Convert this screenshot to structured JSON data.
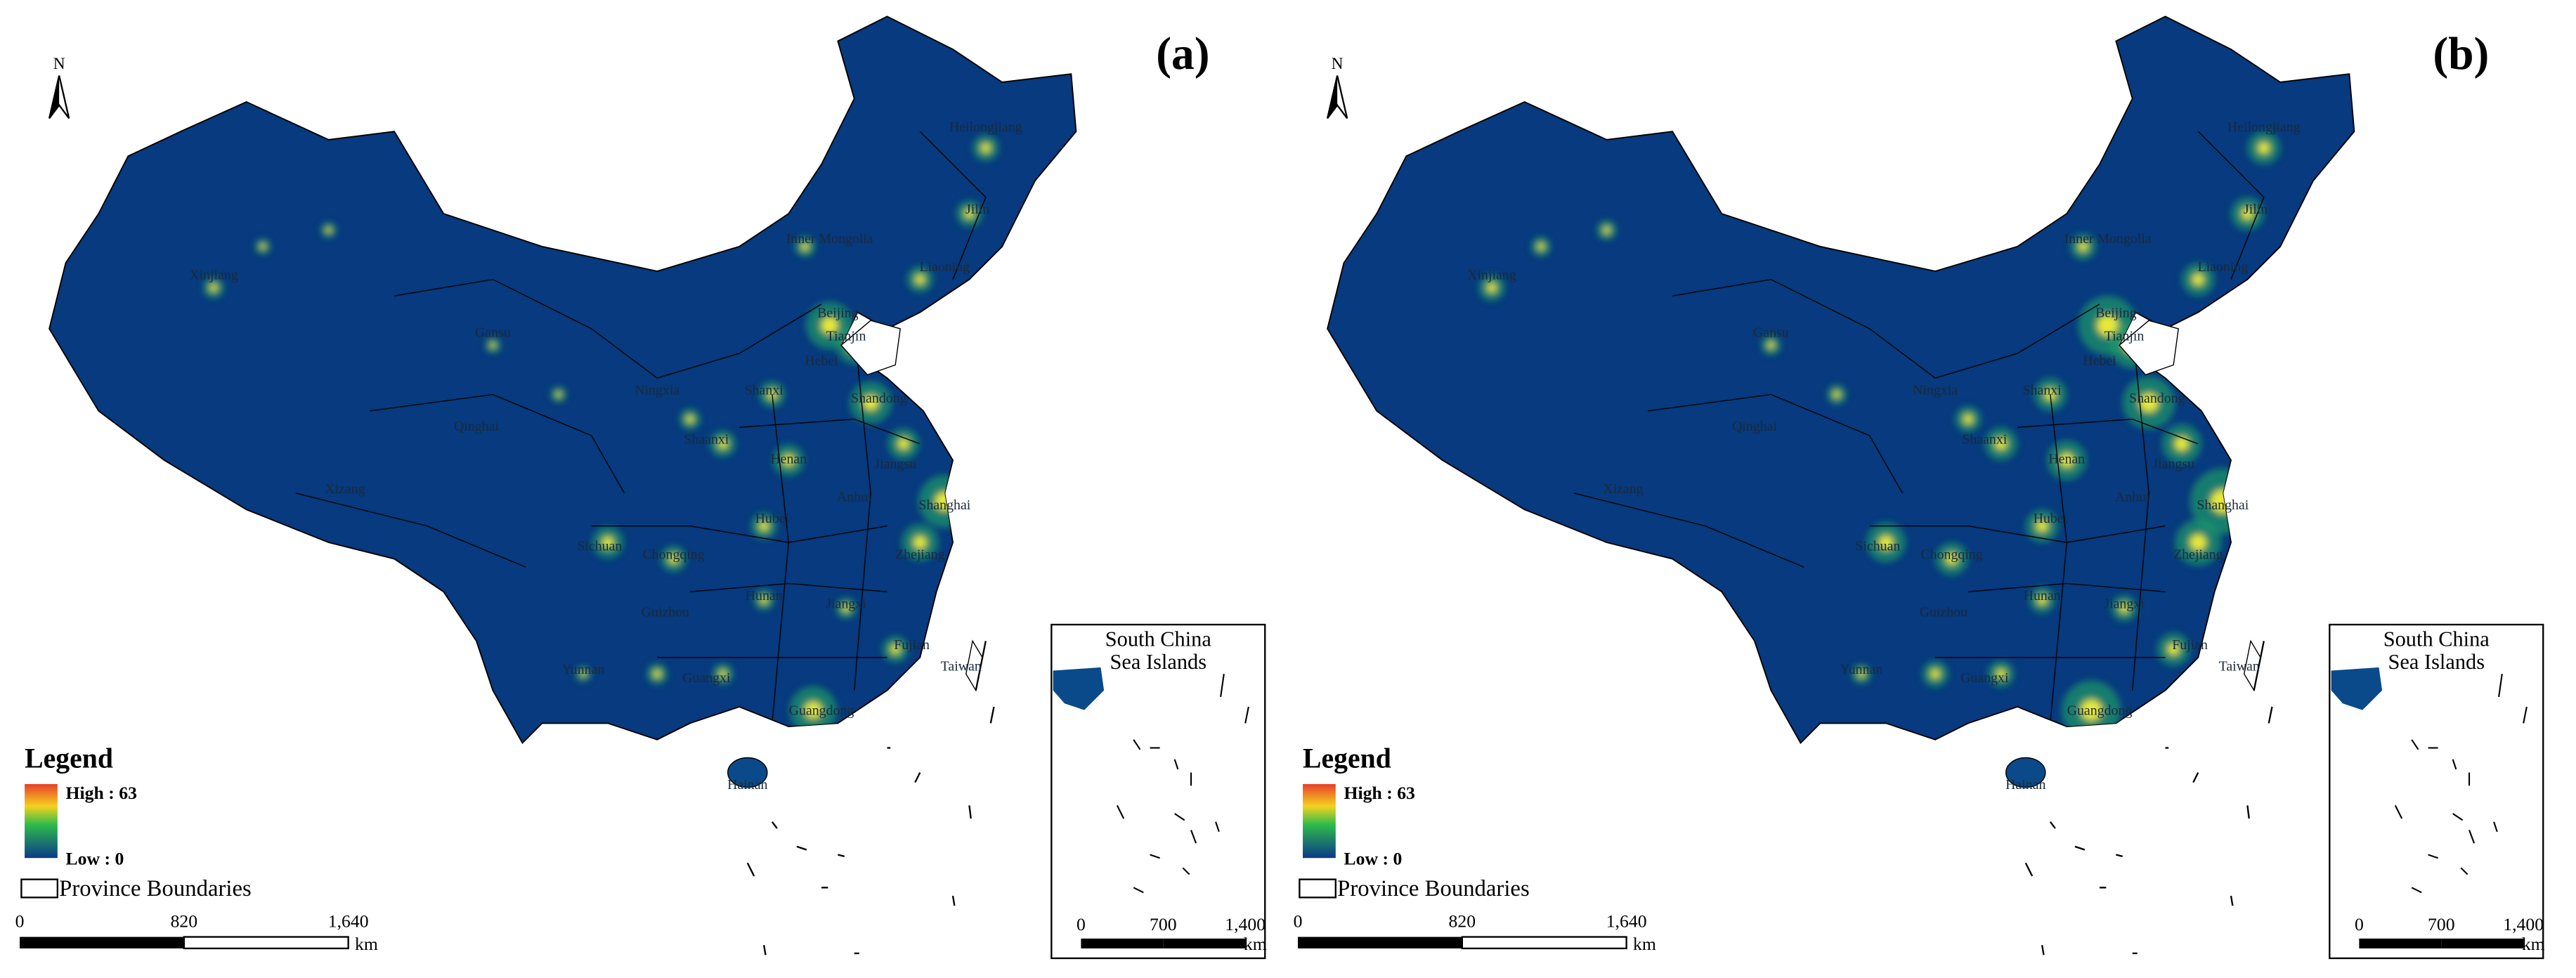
{
  "panels": [
    {
      "label": "(a)",
      "north": "N",
      "provinces": [
        "Xinjiang",
        "Gansu",
        "Qinghai",
        "Xizang",
        "Inner Mongolia",
        "Heilongjiang",
        "Jilin",
        "Liaoning",
        "Beijing",
        "Tianjin",
        "Hebei",
        "Shanxi",
        "Shandong",
        "Ningxia",
        "Shaanxi",
        "Henan",
        "Jiangsu",
        "Shanghai",
        "Anhui",
        "Hubei",
        "Sichuan",
        "Chongqing",
        "Zhejiang",
        "Hunan",
        "Jiangxi",
        "Guizhou",
        "Yunnan",
        "Guangxi",
        "Fujian",
        "Guangdong",
        "Taiwan",
        "Hainan"
      ],
      "legend": {
        "title": "Legend",
        "high": "High : 63",
        "low": "Low : 0",
        "boundaries": "Province Boundaries"
      },
      "scale": {
        "ticks": [
          "0",
          "820",
          "1,640"
        ],
        "unit": "km"
      },
      "inset": {
        "title": [
          "South China",
          "Sea Islands"
        ],
        "scale": {
          "ticks": [
            "0",
            "700",
            "1,400"
          ],
          "unit": "km"
        }
      }
    },
    {
      "label": "(b)",
      "north": "N",
      "provinces": [
        "Xinjiang",
        "Gansu",
        "Qinghai",
        "Xizang",
        "Inner Mongolia",
        "Heilongjiang",
        "Jilin",
        "Liaoning",
        "Beijing",
        "Tianjin",
        "Hebei",
        "Shanxi",
        "Shandong",
        "Ningxia",
        "Shaanxi",
        "Henan",
        "Jiangsu",
        "Shanghai",
        "Anhui",
        "Hubei",
        "Sichuan",
        "Chongqing",
        "Zhejiang",
        "Hunan",
        "Jiangxi",
        "Guizhou",
        "Yunnan",
        "Guangxi",
        "Fujian",
        "Guangdong",
        "Taiwan",
        "Hainan"
      ],
      "legend": {
        "title": "Legend",
        "high": "High : 63",
        "low": "Low : 0",
        "boundaries": "Province Boundaries"
      },
      "scale": {
        "ticks": [
          "0",
          "820",
          "1,640"
        ],
        "unit": "km"
      },
      "inset": {
        "title": [
          "South China",
          "Sea Islands"
        ],
        "scale": {
          "ticks": [
            "0",
            "700",
            "1,400"
          ],
          "unit": "km"
        }
      }
    }
  ]
}
